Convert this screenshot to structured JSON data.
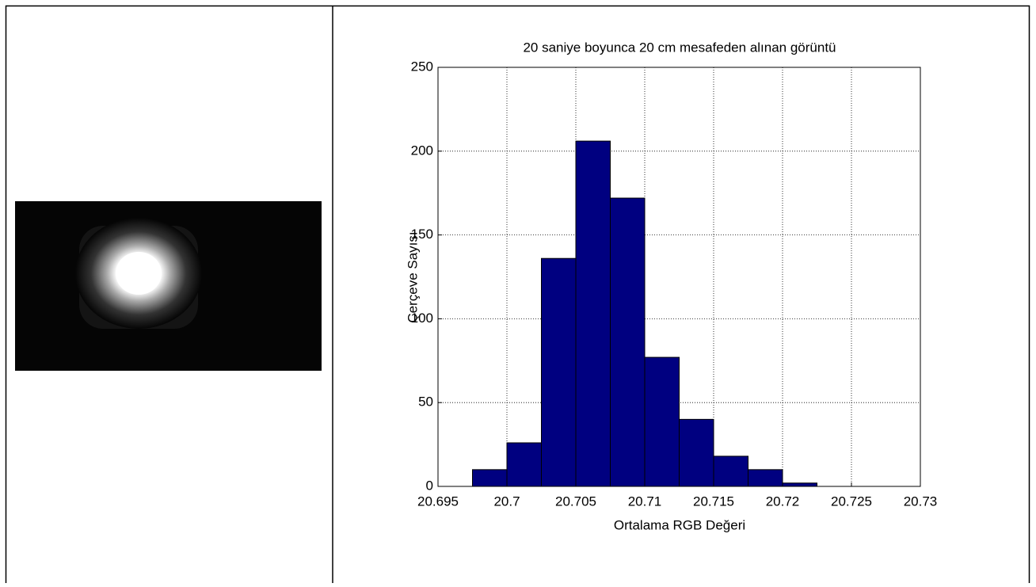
{
  "chart_data": {
    "type": "histogram",
    "title": "20 saniye  boyunca 20 cm mesafeden alınan görüntü",
    "x_label": "Ortalama RGB Değeri",
    "y_label": "Çerçeve Sayısı",
    "bins": [
      20.6975,
      20.7,
      20.7025,
      20.705,
      20.7075,
      20.71,
      20.7125,
      20.715,
      20.7175,
      20.72,
      20.7225
    ],
    "values": [
      10,
      26,
      136,
      206,
      172,
      77,
      40,
      18,
      10,
      2
    ],
    "color": "#000080",
    "xlim": [
      20.695,
      20.73
    ],
    "xticks": [
      20.695,
      20.7,
      20.705,
      20.71,
      20.715,
      20.72,
      20.725,
      20.73
    ],
    "ylim": [
      0,
      250
    ],
    "yticks": [
      0,
      50,
      100,
      150,
      200,
      250
    ],
    "grid": true
  }
}
